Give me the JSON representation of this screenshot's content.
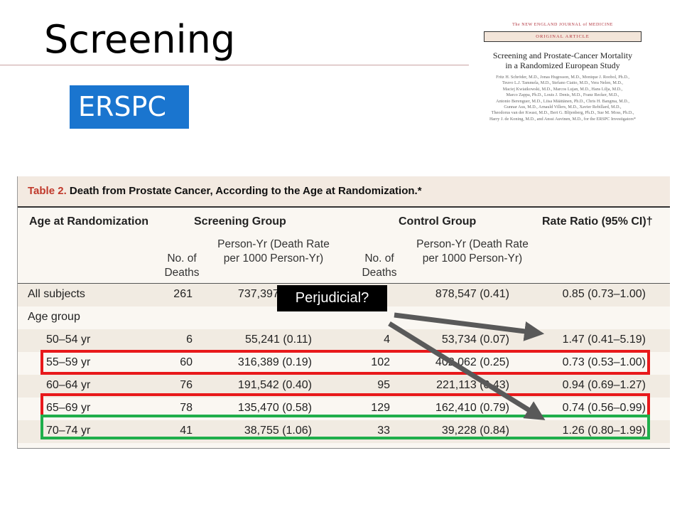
{
  "slide": {
    "title": "Screening",
    "tag": "ERSPC"
  },
  "article": {
    "journal": "The NEW ENGLAND JOURNAL of MEDICINE",
    "badge": "ORIGINAL ARTICLE",
    "title_line1": "Screening and Prostate-Cancer Mortality",
    "title_line2": "in a Randomized European Study",
    "authors": [
      "Fritz H. Schröder, M.D., Jonas Hugosson, M.D., Monique J. Roobol, Ph.D.,",
      "Teuvo L.J. Tammela, M.D., Stefano Ciatto, M.D., Vera Nelen, M.D.,",
      "Maciej Kwiatkowski, M.D., Marcos Lujan, M.D., Hans Lilja, M.D.,",
      "Marco Zappa, Ph.D., Louis J. Denis, M.D., Franz Recker, M.D.,",
      "Antonio Berenguer, M.D., Liisa Määttänen, Ph.D., Chris H. Bangma, M.D.,",
      "Gunnar Aus, M.D., Arnauld Villers, M.D., Xavier Rebillard, M.D.,",
      "Theodorus van der Kwast, M.D., Bert G. Blijenberg, Ph.D., Sue M. Moss, Ph.D.,",
      "Harry J. de Koning, M.D., and Anssi Auvinen, M.D., for the ERSPC Investigators*"
    ]
  },
  "table": {
    "label": "Table 2.",
    "caption": "Death from Prostate Cancer, According to the Age at Randomization.*",
    "col_age": "Age at Randomization",
    "group_screening": "Screening Group",
    "group_control": "Control Group",
    "col_rate": "Rate Ratio  (95% CI)†",
    "sub_deaths": "No. of Deaths",
    "sub_py": "Person-Yr (Death Rate per 1000 Person-Yr)",
    "age_group_label": "Age group",
    "rows": [
      {
        "label": "All subjects",
        "s_deaths": "261",
        "s_py": "737,397 (0.35)",
        "c_deaths": "",
        "c_py": "878,547 (0.41)",
        "rr": "0.85 (0.73–1.00)"
      },
      {
        "label": "50–54 yr",
        "s_deaths": "6",
        "s_py": "55,241 (0.11)",
        "c_deaths": "4",
        "c_py": "53,734 (0.07)",
        "rr": "1.47 (0.41–5.19)"
      },
      {
        "label": "55–59 yr",
        "s_deaths": "60",
        "s_py": "316,389 (0.19)",
        "c_deaths": "102",
        "c_py": "402,062 (0.25)",
        "rr": "0.73 (0.53–1.00)"
      },
      {
        "label": "60–64 yr",
        "s_deaths": "76",
        "s_py": "191,542 (0.40)",
        "c_deaths": "95",
        "c_py": "221,113 (0.43)",
        "rr": "0.94 (0.69–1.27)"
      },
      {
        "label": "65–69 yr",
        "s_deaths": "78",
        "s_py": "135,470 (0.58)",
        "c_deaths": "129",
        "c_py": "162,410 (0.79)",
        "rr": "0.74 (0.56–0.99)"
      },
      {
        "label": "70–74 yr",
        "s_deaths": "41",
        "s_py": "38,755 (1.06)",
        "c_deaths": "33",
        "c_py": "39,228 (0.84)",
        "rr": "1.26 (0.80–1.99)"
      }
    ]
  },
  "callout": {
    "text": "Perjudicial?"
  },
  "colors": {
    "tag_bg": "#1a75cf",
    "highlight_red": "#e8191b",
    "highlight_green": "#1fae4b",
    "arrow": "#595959"
  }
}
